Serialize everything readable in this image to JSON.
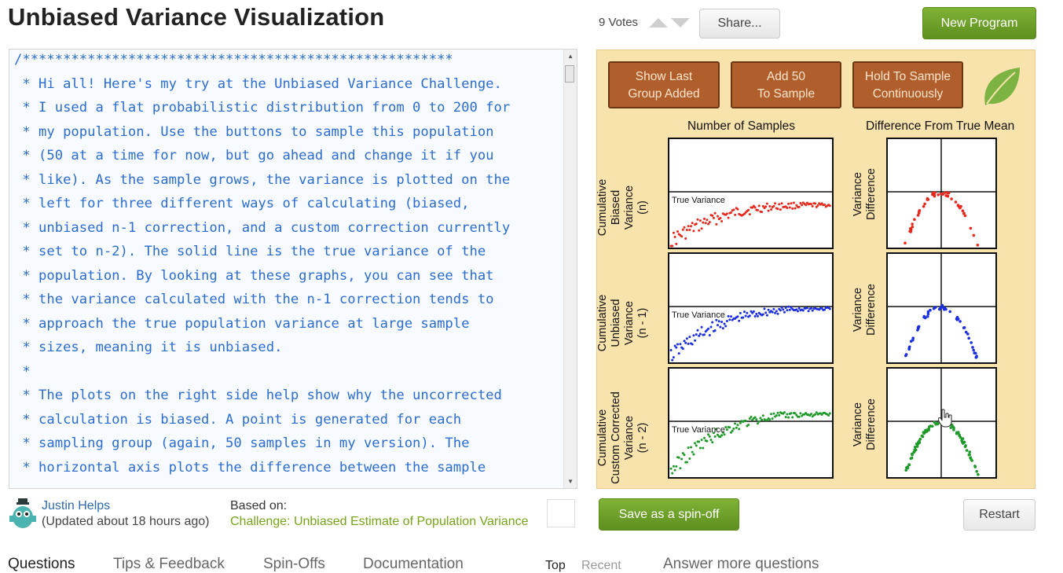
{
  "header": {
    "title": "Unbiased Variance Visualization",
    "votes": "9 Votes",
    "share_label": "Share...",
    "new_program_label": "New Program"
  },
  "editor": {
    "lines": [
      "/*****************************************************",
      " * Hi all! Here's my try at the Unbiased Variance Challenge.",
      " * I used a flat probabilistic distribution from 0 to 200 for",
      " * my population. Use the buttons to sample this population",
      " * (50 at a time for now, but go ahead and change it if you",
      " * like). As the sample grows, the variance is plotted on the",
      " * left for three different ways of calculating (biased,",
      " * unbiased n-1 correction, and a custom correction currently",
      " * set to n-2). The solid line is the true variance of the",
      " * population. By looking at these graphs, you can see that",
      " * the variance calculated with the n-1 correction tends to",
      " * approach the true population variance at large sample",
      " * sizes, meaning it is unbiased.",
      " *",
      " * The plots on the right side help show why the uncorrected",
      " * calculation is biased. A point is generated for each",
      " * sampling group (again, 50 samples in my version). The",
      " * horizontal axis plots the difference between the sample"
    ]
  },
  "canvas": {
    "buttons": [
      {
        "line1": "Show Last",
        "line2": "Group Added"
      },
      {
        "line1": "Add  50",
        "line2": "To Sample"
      },
      {
        "line1": "Hold To Sample",
        "line2": "Continuously"
      }
    ],
    "col_left_title": "Number of Samples",
    "col_right_title": "Difference From True Mean",
    "true_variance_label": "True Variance",
    "rows": [
      {
        "ylabel_lines": [
          "Cumulative",
          "Biased",
          "Variance",
          "(n)"
        ],
        "right_ylabel_lines": [
          "Variance",
          "Difference"
        ],
        "color": "#e8281c"
      },
      {
        "ylabel_lines": [
          "Cumulative",
          "Unbiased",
          "Variance",
          "(n - 1)"
        ],
        "right_ylabel_lines": [
          "Variance",
          "Difference"
        ],
        "color": "#1c2fe0"
      },
      {
        "ylabel_lines": [
          "Cumulative",
          "Custom Corrected",
          "Variance",
          "(n - 2)"
        ],
        "right_ylabel_lines": [
          "Variance",
          "Difference"
        ],
        "color": "#1f9a2a"
      }
    ],
    "colors": {
      "panel_bg": "#f9e3ad",
      "button_bg": "#b05f2c",
      "leaf": "#7cb342"
    }
  },
  "footer": {
    "author_name": "Justin Helps",
    "author_updated": "(Updated about 18 hours ago)",
    "based_on_label": "Based on:",
    "based_on_link": "Challenge: Unbiased Estimate of Population Variance",
    "spinoff_label": "Save as a spin-off",
    "restart_label": "Restart"
  },
  "tabs": {
    "questions": "Questions",
    "tips": "Tips & Feedback",
    "spinoffs": "Spin-Offs",
    "documentation": "Documentation",
    "top": "Top",
    "recent": "Recent",
    "answer_more": "Answer more questions"
  }
}
